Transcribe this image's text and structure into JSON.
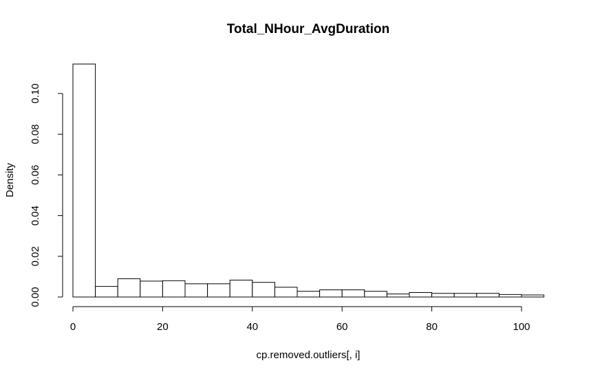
{
  "chart_data": {
    "type": "bar",
    "title": "Total_NHour_AvgDuration",
    "xlabel": "cp.removed.outliers[, i]",
    "ylabel": "Density",
    "xlim": [
      0,
      105
    ],
    "ylim": [
      0,
      0.115
    ],
    "x_ticks": [
      0,
      20,
      40,
      60,
      80,
      100
    ],
    "y_ticks": [
      0.0,
      0.02,
      0.04,
      0.06,
      0.08,
      0.1
    ],
    "x_tick_labels": [
      "0",
      "20",
      "40",
      "60",
      "80",
      "100"
    ],
    "y_tick_labels": [
      "0.00",
      "0.02",
      "0.04",
      "0.06",
      "0.08",
      "0.10"
    ],
    "bin_width": 5,
    "bins": [
      {
        "start": 0,
        "end": 5,
        "value": 0.1145
      },
      {
        "start": 5,
        "end": 10,
        "value": 0.0052
      },
      {
        "start": 10,
        "end": 15,
        "value": 0.009
      },
      {
        "start": 15,
        "end": 20,
        "value": 0.0078
      },
      {
        "start": 20,
        "end": 25,
        "value": 0.008
      },
      {
        "start": 25,
        "end": 30,
        "value": 0.0065
      },
      {
        "start": 30,
        "end": 35,
        "value": 0.0065
      },
      {
        "start": 35,
        "end": 40,
        "value": 0.0083
      },
      {
        "start": 40,
        "end": 45,
        "value": 0.0072
      },
      {
        "start": 45,
        "end": 50,
        "value": 0.0048
      },
      {
        "start": 50,
        "end": 55,
        "value": 0.0028
      },
      {
        "start": 55,
        "end": 60,
        "value": 0.0035
      },
      {
        "start": 60,
        "end": 65,
        "value": 0.0035
      },
      {
        "start": 65,
        "end": 70,
        "value": 0.0028
      },
      {
        "start": 70,
        "end": 75,
        "value": 0.0015
      },
      {
        "start": 75,
        "end": 80,
        "value": 0.0022
      },
      {
        "start": 80,
        "end": 85,
        "value": 0.0018
      },
      {
        "start": 85,
        "end": 90,
        "value": 0.0018
      },
      {
        "start": 90,
        "end": 95,
        "value": 0.0018
      },
      {
        "start": 95,
        "end": 100,
        "value": 0.0012
      },
      {
        "start": 100,
        "end": 105,
        "value": 0.001
      }
    ],
    "grid": false,
    "legend": "none"
  }
}
